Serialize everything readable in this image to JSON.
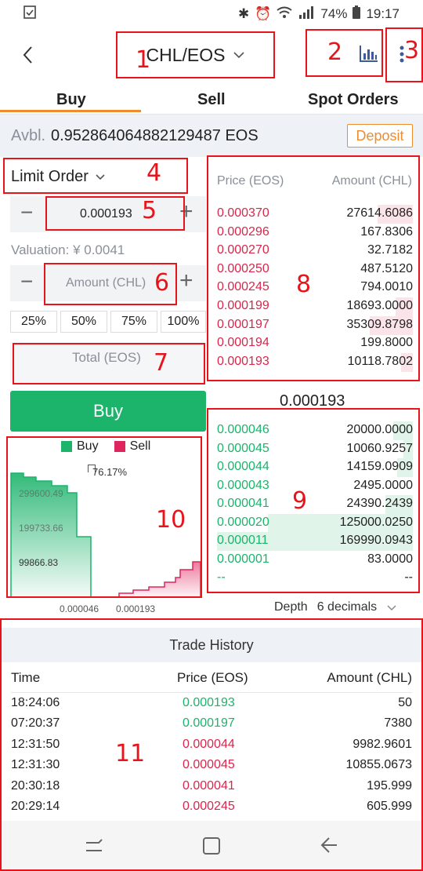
{
  "status_bar": {
    "battery": "74%",
    "time": "19:17"
  },
  "header": {
    "pair": "CHL/EOS"
  },
  "tabs": [
    "Buy",
    "Sell",
    "Spot Orders"
  ],
  "balance": {
    "label": "Avbl.",
    "value": "0.952864064882129487 EOS",
    "deposit_label": "Deposit"
  },
  "order_form": {
    "order_type": "Limit Order",
    "price_value": "0.000193",
    "valuation": "Valuation: ¥ 0.0041",
    "amount_placeholder": "Amount (CHL)",
    "percent_options": [
      "25%",
      "50%",
      "75%",
      "100%"
    ],
    "total_placeholder": "Total (EOS)",
    "buy_label": "Buy",
    "minus": "−",
    "plus": "+"
  },
  "order_book": {
    "price_header": "Price (EOS)",
    "amount_header": "Amount (CHL)",
    "asks": [
      {
        "price": "0.000370",
        "amount": "27614.6086",
        "depth": 0.18
      },
      {
        "price": "0.000296",
        "amount": "167.8306",
        "depth": 0.0
      },
      {
        "price": "0.000270",
        "amount": "32.7182",
        "depth": 0.0
      },
      {
        "price": "0.000250",
        "amount": "487.5120",
        "depth": 0.0
      },
      {
        "price": "0.000245",
        "amount": "794.0010",
        "depth": 0.0
      },
      {
        "price": "0.000199",
        "amount": "18693.0000",
        "depth": 0.09
      },
      {
        "price": "0.000197",
        "amount": "35309.8798",
        "depth": 0.22
      },
      {
        "price": "0.000194",
        "amount": "199.8000",
        "depth": 0.0
      },
      {
        "price": "0.000193",
        "amount": "10118.7802",
        "depth": 0.06
      }
    ],
    "last_price": "0.000193",
    "bids": [
      {
        "price": "0.000046",
        "amount": "20000.0000",
        "depth": 0.1
      },
      {
        "price": "0.000045",
        "amount": "10060.9257",
        "depth": 0.05
      },
      {
        "price": "0.000044",
        "amount": "14159.0909",
        "depth": 0.08
      },
      {
        "price": "0.000043",
        "amount": "2495.0000",
        "depth": 0.0
      },
      {
        "price": "0.000041",
        "amount": "24390.2439",
        "depth": 0.14
      },
      {
        "price": "0.000020",
        "amount": "125000.0250",
        "depth": 0.74
      },
      {
        "price": "0.000011",
        "amount": "169990.0943",
        "depth": 1.0
      },
      {
        "price": "0.000001",
        "amount": "83.0000",
        "depth": 0.0
      },
      {
        "price": "--",
        "amount": "--",
        "depth": 0.0
      }
    ],
    "depth_label": "Depth",
    "decimals_label": "6 decimals"
  },
  "depth_chart": {
    "legend_buy": "Buy",
    "legend_sell": "Sell",
    "ratio": "76.17%",
    "y_labels": [
      "299600.49",
      "199733.66",
      "99866.83"
    ],
    "x_labels": [
      "0.000046",
      "0.000193"
    ],
    "colors": {
      "buy": "#1cb36b",
      "sell": "#e0245e"
    }
  },
  "trade_history": {
    "title": "Trade History",
    "headers": {
      "time": "Time",
      "price": "Price (EOS)",
      "amount": "Amount (CHL)"
    },
    "rows": [
      {
        "time": "18:24:06",
        "price": "0.000193",
        "amount": "50",
        "side": "buy"
      },
      {
        "time": "07:20:37",
        "price": "0.000197",
        "amount": "7380",
        "side": "buy"
      },
      {
        "time": "12:31:50",
        "price": "0.000044",
        "amount": "9982.9601",
        "side": "sell"
      },
      {
        "time": "12:31:30",
        "price": "0.000045",
        "amount": "10855.0673",
        "side": "sell"
      },
      {
        "time": "20:30:18",
        "price": "0.000041",
        "amount": "195.999",
        "side": "sell"
      },
      {
        "time": "20:29:14",
        "price": "0.000245",
        "amount": "605.999",
        "side": "sell"
      }
    ]
  },
  "annotations": [
    "1",
    "2",
    "3",
    "4",
    "5",
    "6",
    "7",
    "8",
    "9",
    "10",
    "11"
  ]
}
